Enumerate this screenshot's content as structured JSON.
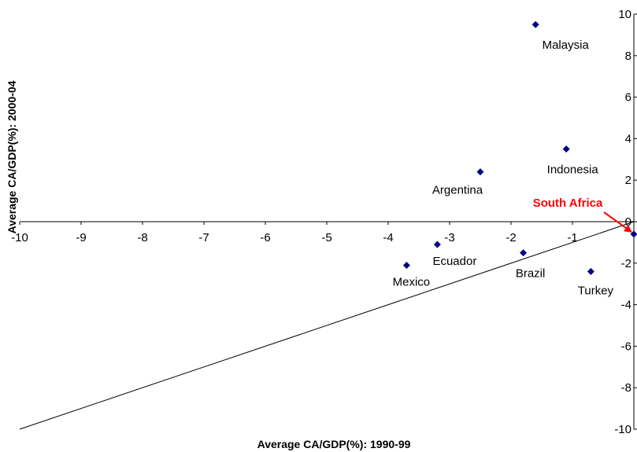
{
  "chart_data": {
    "type": "scatter",
    "xlabel": "Average CA/GDP(%): 1990-99",
    "ylabel": "Average CA/GDP(%): 2000-04",
    "xlim": [
      -10,
      0
    ],
    "ylim": [
      -10,
      10
    ],
    "x_ticks": [
      "-10",
      "-9",
      "-8",
      "-7",
      "-6",
      "-5",
      "-4",
      "-3",
      "-2",
      "-1"
    ],
    "y_ticks": [
      "10",
      "8",
      "6",
      "4",
      "2",
      "0",
      "-2",
      "-4",
      "-6",
      "-8",
      "-10"
    ],
    "grid": false,
    "marker_color": "#000080",
    "points": [
      {
        "label": "Malaysia",
        "x": -1.6,
        "y": 9.5
      },
      {
        "label": "Indonesia",
        "x": -1.1,
        "y": 3.5
      },
      {
        "label": "Argentina",
        "x": -2.5,
        "y": 2.4
      },
      {
        "label": "Ecuador",
        "x": -3.2,
        "y": -1.1
      },
      {
        "label": "Mexico",
        "x": -3.7,
        "y": -2.1
      },
      {
        "label": "Brazil",
        "x": -1.8,
        "y": -1.5
      },
      {
        "label": "Turkey",
        "x": -0.7,
        "y": -2.4
      },
      {
        "label": "South Africa",
        "x": 0,
        "y": -0.6
      }
    ],
    "reference_line": {
      "from": [
        -10,
        -10
      ],
      "to": [
        0,
        0
      ]
    },
    "annotation": {
      "text": "South Africa",
      "color": "#ff0000",
      "points_to": "South Africa"
    }
  }
}
